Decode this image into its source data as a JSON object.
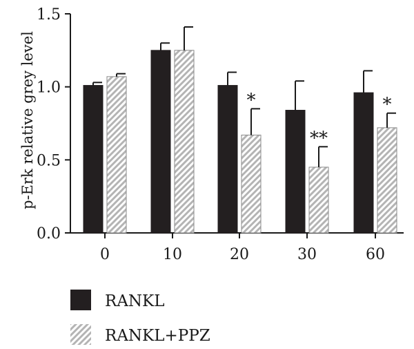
{
  "chart_data": {
    "type": "bar",
    "title": "",
    "xlabel": "",
    "ylabel": "p-Erk relative grey level",
    "ylim": [
      0,
      1.5
    ],
    "yticks": [
      "0.0",
      "0.5",
      "1.0",
      "1.5"
    ],
    "categories": [
      "0",
      "10",
      "20",
      "30",
      "60"
    ],
    "series": [
      {
        "name": "RANKL",
        "values": [
          1.01,
          1.25,
          1.01,
          0.84,
          0.96
        ],
        "errors": [
          0.02,
          0.05,
          0.09,
          0.2,
          0.15
        ],
        "color": "#231f20",
        "pattern": "solid"
      },
      {
        "name": "RANKL+PPZ",
        "values": [
          1.07,
          1.25,
          0.67,
          0.45,
          0.72
        ],
        "errors": [
          0.02,
          0.16,
          0.18,
          0.14,
          0.1
        ],
        "color": "#c8c8c8",
        "pattern": "diagonal-hatch"
      }
    ],
    "significance": [
      "",
      "",
      "*",
      "**",
      "*"
    ],
    "legend_position": "bottom-left",
    "grid": false
  }
}
